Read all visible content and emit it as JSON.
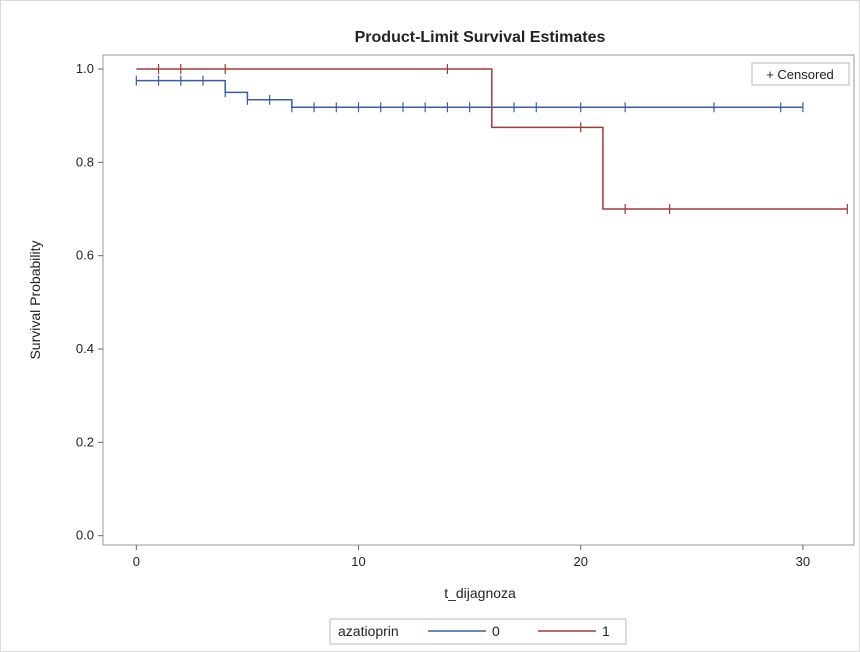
{
  "chart_data": {
    "type": "line",
    "subtype": "kaplan-meier step",
    "title": "Product-Limit Survival Estimates",
    "xlabel": "t_dijagnoza",
    "ylabel": "Survival Probability",
    "xlim": [
      -1.5,
      32.3
    ],
    "ylim": [
      -0.02,
      1.03
    ],
    "xticks": [
      0,
      10,
      20,
      30
    ],
    "xtick_labels": [
      "0",
      "10",
      "20",
      "30"
    ],
    "yticks": [
      0.0,
      0.2,
      0.4,
      0.6,
      0.8,
      1.0
    ],
    "ytick_labels": [
      "0.0",
      "0.2",
      "0.4",
      "0.6",
      "0.8",
      "1.0"
    ],
    "grid": false,
    "censored_label": "+ Censored",
    "legend": {
      "title": "azatioprin",
      "position": "bottom"
    },
    "series": [
      {
        "name": "0",
        "color": "#3a5da8",
        "steps": [
          [
            0,
            0.975
          ],
          [
            4,
            0.95
          ],
          [
            5,
            0.934
          ],
          [
            7,
            0.918
          ],
          [
            30,
            0.918
          ]
        ],
        "censored": [
          [
            0,
            0.975
          ],
          [
            1,
            0.975
          ],
          [
            2,
            0.975
          ],
          [
            3,
            0.975
          ],
          [
            4,
            0.95
          ],
          [
            5,
            0.934
          ],
          [
            6,
            0.934
          ],
          [
            7,
            0.918
          ],
          [
            8,
            0.918
          ],
          [
            9,
            0.918
          ],
          [
            10,
            0.918
          ],
          [
            11,
            0.918
          ],
          [
            12,
            0.918
          ],
          [
            13,
            0.918
          ],
          [
            14,
            0.918
          ],
          [
            15,
            0.918
          ],
          [
            17,
            0.918
          ],
          [
            18,
            0.918
          ],
          [
            20,
            0.918
          ],
          [
            22,
            0.918
          ],
          [
            26,
            0.918
          ],
          [
            29,
            0.918
          ],
          [
            30,
            0.918
          ]
        ]
      },
      {
        "name": "1",
        "color": "#a33a3a",
        "steps": [
          [
            0,
            1.0
          ],
          [
            16,
            0.875
          ],
          [
            21,
            0.7
          ],
          [
            32,
            0.7
          ]
        ],
        "censored": [
          [
            1,
            1.0
          ],
          [
            2,
            1.0
          ],
          [
            4,
            1.0
          ],
          [
            14,
            1.0
          ],
          [
            20,
            0.875
          ],
          [
            22,
            0.7
          ],
          [
            24,
            0.7
          ],
          [
            32,
            0.7
          ]
        ]
      }
    ]
  }
}
